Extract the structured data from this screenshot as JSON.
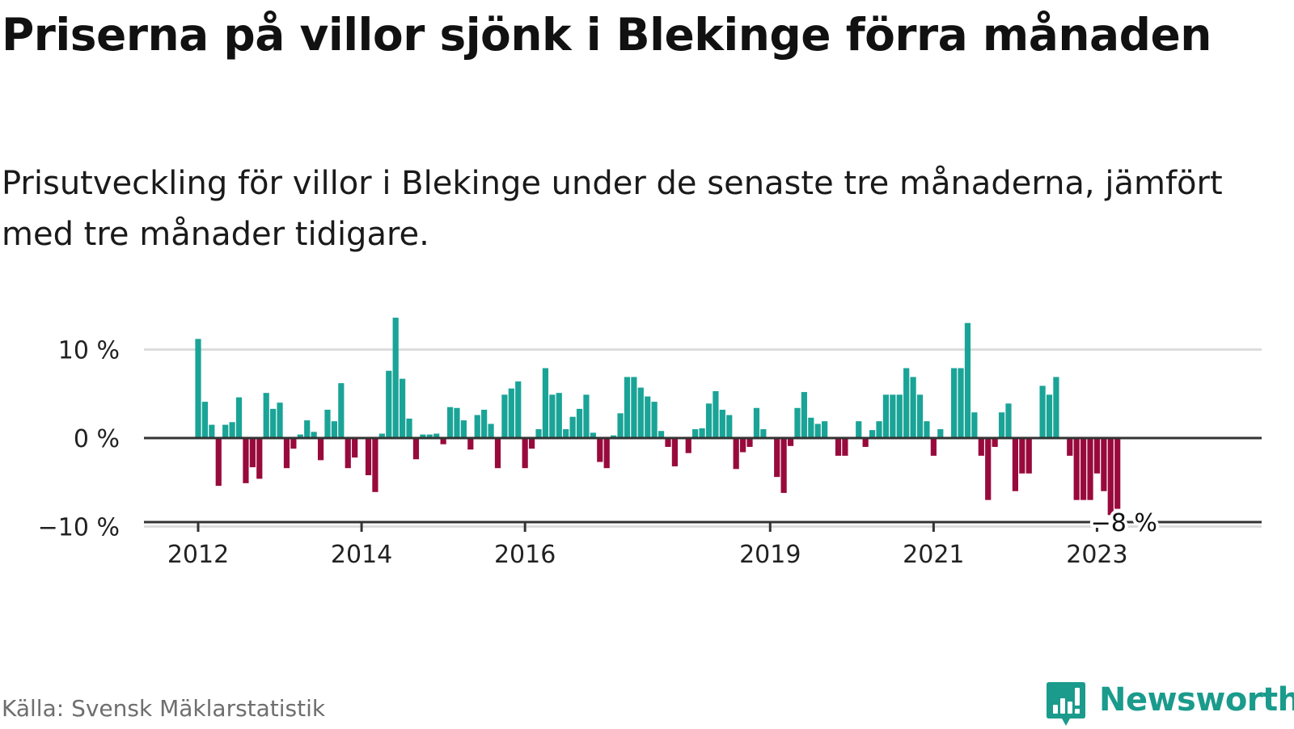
{
  "title": "Priserna på villor sjönk i Blekinge förra månaden",
  "subtitle": "Prisutveckling för villor i Blekinge under de senaste tre månaderna, jämfört med tre månader tidigare.",
  "source": "Källa: Svensk Mäklarstatistik",
  "brand": {
    "name": "Newsworthy",
    "icon": "newsworthy-logo-icon",
    "color": "#1a9b8c"
  },
  "colors": {
    "positive": "#1aa497",
    "negative": "#990a3c",
    "zero_line": "#333333",
    "grid": "#dddddd"
  },
  "chart_data": {
    "type": "bar",
    "title": "",
    "xlabel": "",
    "ylabel": "",
    "start": "2012-01",
    "ylim": [
      -10.5,
      15
    ],
    "grid": true,
    "yticks": [
      {
        "value": 10,
        "label": "10 %"
      },
      {
        "value": 0,
        "label": "0 %"
      },
      {
        "value": -10,
        "label": "−10 %"
      }
    ],
    "xticks": [
      {
        "date": "2012-01",
        "label": "2012"
      },
      {
        "date": "2014-01",
        "label": "2014"
      },
      {
        "date": "2016-01",
        "label": "2016"
      },
      {
        "date": "2019-01",
        "label": "2019"
      },
      {
        "date": "2021-01",
        "label": "2021"
      },
      {
        "date": "2023-01",
        "label": "2023"
      }
    ],
    "last_label": "−8 %",
    "values": [
      11.2,
      4.1,
      1.5,
      -5.4,
      1.5,
      1.8,
      4.6,
      -5.1,
      -3.3,
      -4.6,
      5.1,
      3.3,
      4.0,
      -3.4,
      -1.2,
      0.4,
      2.0,
      0.7,
      -2.5,
      3.2,
      1.9,
      6.2,
      -3.4,
      -2.2,
      0.0,
      -4.2,
      -6.1,
      0.5,
      7.6,
      13.6,
      6.7,
      2.2,
      -2.4,
      0.4,
      0.4,
      0.5,
      -0.7,
      3.5,
      3.4,
      2.0,
      -1.3,
      2.6,
      3.2,
      1.6,
      -3.4,
      4.9,
      5.6,
      6.4,
      -3.4,
      -1.2,
      1.0,
      7.9,
      4.9,
      5.1,
      1.0,
      2.4,
      3.3,
      4.9,
      0.6,
      -2.7,
      -3.4,
      0.3,
      2.8,
      6.9,
      6.9,
      5.7,
      4.7,
      4.1,
      0.8,
      -1.0,
      -3.2,
      0.0,
      -1.7,
      1.0,
      1.1,
      3.9,
      5.3,
      3.2,
      2.6,
      -3.5,
      -1.6,
      -1.0,
      3.4,
      1.0,
      0.0,
      -4.4,
      -6.2,
      -0.9,
      3.4,
      5.2,
      2.3,
      1.6,
      1.9,
      0.0,
      -2.0,
      -2.0,
      0.0,
      1.9,
      -1.0,
      0.9,
      1.9,
      4.9,
      4.9,
      4.9,
      7.9,
      6.9,
      4.9,
      1.9,
      -2.0,
      1.0,
      0.0,
      7.9,
      7.9,
      13.0,
      2.9,
      -2.0,
      -7.0,
      -1.0,
      2.9,
      3.9,
      -6.0,
      -4.0,
      -4.0,
      0.0,
      5.9,
      4.9,
      6.9,
      0.0,
      -2.0,
      -7.0,
      -7.0,
      -7.0,
      -4.0,
      -6.0,
      -8.7,
      -8.0
    ]
  }
}
